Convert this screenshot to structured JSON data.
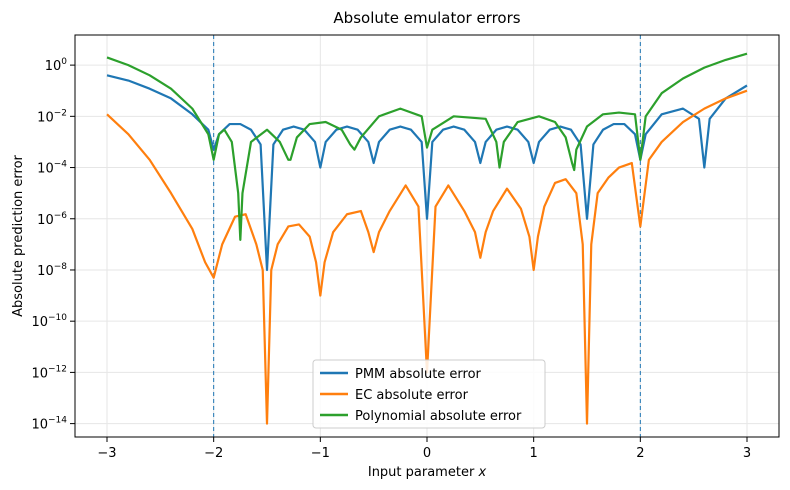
{
  "chart_data": {
    "type": "line",
    "title": "Absolute emulator errors",
    "xlabel": "Input parameter",
    "xlabel_var": "x",
    "ylabel": "Absolute prediction error",
    "xlim": [
      -3.3,
      3.3
    ],
    "ylim": [
      3e-15,
      15.0
    ],
    "yscale": "log",
    "grid": true,
    "legend_position": "lower center",
    "x_ticks": [
      -3,
      -2,
      -1,
      0,
      1,
      2,
      3
    ],
    "x_tick_labels": [
      "−3",
      "−2",
      "−1",
      "0",
      "1",
      "2",
      "3"
    ],
    "y_ticks": [
      {
        "exp": 0,
        "base": "10",
        "sup": "0"
      },
      {
        "exp": -2,
        "base": "10",
        "sup": "−2"
      },
      {
        "exp": -4,
        "base": "10",
        "sup": "−4"
      },
      {
        "exp": -6,
        "base": "10",
        "sup": "−6"
      },
      {
        "exp": -8,
        "base": "10",
        "sup": "−8"
      },
      {
        "exp": -10,
        "base": "10",
        "sup": "−10"
      },
      {
        "exp": -12,
        "base": "10",
        "sup": "−12"
      },
      {
        "exp": -14,
        "base": "10",
        "sup": "−14"
      }
    ],
    "vlines": [
      -2,
      2
    ],
    "vline_color": "#1f77b4",
    "series": [
      {
        "name": "PMM absolute error",
        "color": "#1f77b4",
        "x": [
          -3.0,
          -2.8,
          -2.6,
          -2.4,
          -2.2,
          -2.05,
          -2.0,
          -1.95,
          -1.85,
          -1.75,
          -1.65,
          -1.56,
          -1.5,
          -1.44,
          -1.35,
          -1.25,
          -1.15,
          -1.05,
          -1.0,
          -0.95,
          -0.85,
          -0.75,
          -0.65,
          -0.55,
          -0.5,
          -0.45,
          -0.35,
          -0.25,
          -0.15,
          -0.05,
          0.0,
          0.05,
          0.15,
          0.25,
          0.35,
          0.45,
          0.5,
          0.55,
          0.65,
          0.75,
          0.85,
          0.95,
          1.0,
          1.05,
          1.15,
          1.25,
          1.35,
          1.44,
          1.5,
          1.56,
          1.65,
          1.75,
          1.85,
          1.95,
          2.0,
          2.05,
          2.2,
          2.4,
          2.55,
          2.6,
          2.65,
          2.8,
          3.0
        ],
        "y": [
          0.4,
          0.25,
          0.12,
          0.05,
          0.012,
          0.003,
          0.0005,
          0.002,
          0.005,
          0.005,
          0.003,
          0.0008,
          1e-08,
          0.0008,
          0.003,
          0.004,
          0.003,
          0.001,
          0.0001,
          0.001,
          0.003,
          0.004,
          0.003,
          0.001,
          0.00015,
          0.001,
          0.003,
          0.004,
          0.003,
          0.001,
          1e-06,
          0.001,
          0.003,
          0.004,
          0.003,
          0.001,
          0.00015,
          0.001,
          0.003,
          0.004,
          0.003,
          0.001,
          0.00015,
          0.001,
          0.003,
          0.004,
          0.003,
          0.0008,
          1e-06,
          0.0008,
          0.003,
          0.005,
          0.005,
          0.002,
          0.0002,
          0.002,
          0.012,
          0.02,
          0.008,
          0.0001,
          0.008,
          0.05,
          0.16
        ]
      },
      {
        "name": "EC absolute error",
        "color": "#ff7f0e",
        "x": [
          -3.0,
          -2.8,
          -2.6,
          -2.4,
          -2.2,
          -2.08,
          -2.0,
          -1.92,
          -1.8,
          -1.7,
          -1.6,
          -1.54,
          -1.5,
          -1.46,
          -1.4,
          -1.3,
          -1.2,
          -1.1,
          -1.04,
          -1.0,
          -0.96,
          -0.88,
          -0.75,
          -0.62,
          -0.55,
          -0.5,
          -0.45,
          -0.35,
          -0.2,
          -0.08,
          0.0,
          0.08,
          0.2,
          0.35,
          0.45,
          0.5,
          0.55,
          0.62,
          0.75,
          0.88,
          0.96,
          1.0,
          1.04,
          1.1,
          1.2,
          1.3,
          1.4,
          1.46,
          1.5,
          1.54,
          1.6,
          1.7,
          1.8,
          1.92,
          2.0,
          2.08,
          2.2,
          2.4,
          2.6,
          2.8,
          3.0
        ],
        "y": [
          0.012,
          0.002,
          0.0002,
          1e-05,
          4e-07,
          2e-08,
          5e-09,
          1e-07,
          1.2e-06,
          1.5e-06,
          1e-07,
          1e-08,
          1e-14,
          1e-08,
          1e-07,
          5e-07,
          6e-07,
          2e-07,
          2e-08,
          1e-09,
          2e-08,
          3e-07,
          1.5e-06,
          2e-06,
          3e-07,
          5e-08,
          3e-07,
          2e-06,
          2e-05,
          3e-06,
          1e-12,
          3e-06,
          2e-05,
          2e-06,
          3e-07,
          3e-08,
          3e-07,
          2e-06,
          1.5e-05,
          2.5e-06,
          2e-07,
          1e-08,
          2e-07,
          3e-06,
          2.5e-05,
          3.5e-05,
          1e-05,
          1e-07,
          1e-14,
          1e-07,
          1e-05,
          4e-05,
          0.0001,
          0.00015,
          5e-07,
          0.0002,
          0.001,
          0.006,
          0.02,
          0.05,
          0.1
        ]
      },
      {
        "name": "Polynomial absolute error",
        "color": "#2ca02c",
        "x": [
          -3.0,
          -2.8,
          -2.6,
          -2.4,
          -2.2,
          -2.05,
          -2.0,
          -1.95,
          -1.9,
          -1.83,
          -1.77,
          -1.75,
          -1.73,
          -1.65,
          -1.5,
          -1.38,
          -1.3,
          -1.28,
          -1.22,
          -1.1,
          -0.95,
          -0.8,
          -0.72,
          -0.68,
          -0.62,
          -0.45,
          -0.25,
          -0.05,
          0.0,
          0.05,
          0.25,
          0.55,
          0.65,
          0.68,
          0.72,
          0.85,
          1.05,
          1.2,
          1.3,
          1.36,
          1.38,
          1.4,
          1.5,
          1.65,
          1.8,
          1.95,
          2.0,
          2.05,
          2.2,
          2.4,
          2.6,
          2.8,
          3.0
        ],
        "y": [
          2.0,
          1.0,
          0.4,
          0.12,
          0.02,
          0.002,
          0.0002,
          0.002,
          0.003,
          0.001,
          1e-05,
          1.5e-07,
          1e-05,
          0.001,
          0.003,
          0.001,
          0.0002,
          0.0002,
          0.0015,
          0.005,
          0.006,
          0.003,
          0.0008,
          0.0005,
          0.0015,
          0.01,
          0.02,
          0.01,
          0.0006,
          0.003,
          0.01,
          0.008,
          0.001,
          0.0001,
          0.001,
          0.006,
          0.01,
          0.006,
          0.0015,
          0.00015,
          8e-05,
          0.0005,
          0.004,
          0.012,
          0.014,
          0.012,
          0.0002,
          0.01,
          0.08,
          0.3,
          0.8,
          1.6,
          2.8
        ]
      }
    ]
  }
}
